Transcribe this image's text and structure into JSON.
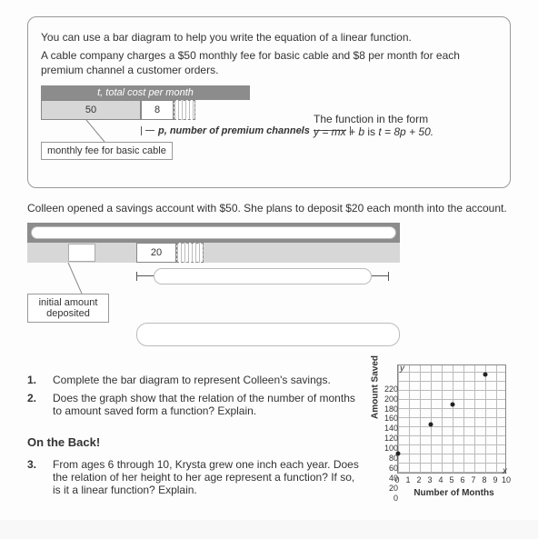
{
  "example": {
    "intro1": "You can use a bar diagram to help you write the equation of a linear function.",
    "intro2": "A cable company charges a $50 monthly fee for basic cable and $8 per month for each premium channel a customer orders.",
    "barTop": "t, total cost per month",
    "seg1": "50",
    "seg2": "8",
    "barBottom": "p, number of premium channels",
    "callout": "monthly fee for basic cable",
    "funcLine1": "The function in the form",
    "funcLine2a": "y = mx + b",
    "funcLine2b": " is ",
    "funcLine2c": "t = 8p + 50."
  },
  "problem": {
    "text": "Colleen opened a savings account with $50. She plans to deposit $20 each month into the account.",
    "seg2": "20",
    "callout": "initial amount deposited"
  },
  "q1": {
    "num": "1.",
    "text": "Complete the bar diagram to represent Colleen's savings."
  },
  "q2": {
    "num": "2.",
    "text": "Does the graph show that the relation of the number of months to amount saved form a function? Explain."
  },
  "onback": "On the Back!",
  "q3": {
    "num": "3.",
    "text": "From ages 6 through 10, Krysta grew one inch each year. Does the relation of her height to her age represent a function? If so, is it a linear function? Explain."
  },
  "graph": {
    "ylabel": "Amount Saved",
    "xlabel": "Number of Months",
    "yticks": [
      "220",
      "200",
      "180",
      "160",
      "140",
      "120",
      "100",
      "80",
      "60",
      "40",
      "20",
      "0"
    ],
    "xticks": [
      "0",
      "1",
      "2",
      "3",
      "4",
      "5",
      "6",
      "7",
      "8",
      "9",
      "10"
    ],
    "yAxisLetter": "y",
    "xAxisLetter": "x",
    "points": [
      {
        "x": 0,
        "y": 50
      },
      {
        "x": 3,
        "y": 110
      },
      {
        "x": 5,
        "y": 150
      },
      {
        "x": 8,
        "y": 210
      }
    ],
    "ymax": 220
  }
}
